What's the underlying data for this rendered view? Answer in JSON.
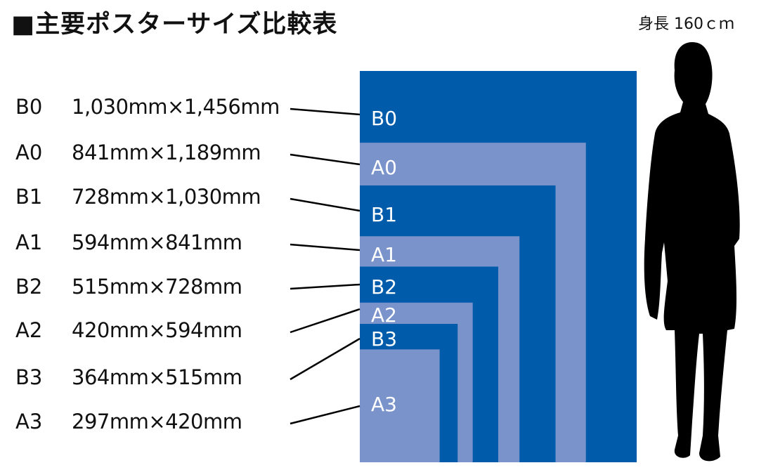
{
  "title": "■主要ポスターサイズ比較表",
  "height_label": "身長 160ｃｍ",
  "colors": {
    "b_series": "#005bab",
    "a_series": "#7a93cb",
    "text_on_rect": "#ffffff",
    "silhouette": "#000000"
  },
  "sizes": [
    {
      "name": "B0",
      "dims": "1,030mm×1,456mm",
      "width_mm": 1030,
      "height_mm": 1456,
      "series": "B"
    },
    {
      "name": "A0",
      "dims": "841mm×1,189mm",
      "width_mm": 841,
      "height_mm": 1189,
      "series": "A"
    },
    {
      "name": "B1",
      "dims": "728mm×1,030mm",
      "width_mm": 728,
      "height_mm": 1030,
      "series": "B"
    },
    {
      "name": "A1",
      "dims": "594mm×841mm",
      "width_mm": 594,
      "height_mm": 841,
      "series": "A"
    },
    {
      "name": "B2",
      "dims": "515mm×728mm",
      "width_mm": 515,
      "height_mm": 728,
      "series": "B"
    },
    {
      "name": "A2",
      "dims": "420mm×594mm",
      "width_mm": 420,
      "height_mm": 594,
      "series": "A"
    },
    {
      "name": "B3",
      "dims": "364mm×515mm",
      "width_mm": 364,
      "height_mm": 515,
      "series": "B"
    },
    {
      "name": "A3",
      "dims": "297mm×420mm",
      "width_mm": 297,
      "height_mm": 420,
      "series": "A"
    }
  ]
}
